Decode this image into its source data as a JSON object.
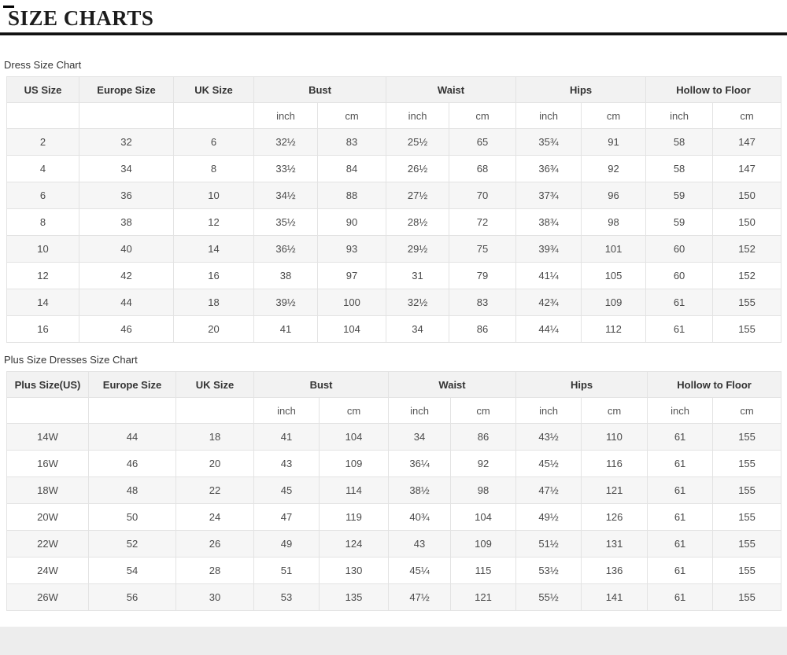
{
  "page": {
    "title": "SIZE CHARTS"
  },
  "sections": [
    {
      "label": "Dress Size Chart"
    },
    {
      "label": "Plus Size Dresses Size Chart"
    }
  ],
  "units": {
    "inch": "inch",
    "cm": "cm"
  },
  "table1": {
    "group_headers": [
      "US Size",
      "Europe Size",
      "UK Size",
      "Bust",
      "Waist",
      "Hips",
      "Hollow to Floor"
    ],
    "rows": [
      [
        "2",
        "32",
        "6",
        "32½",
        "83",
        "25½",
        "65",
        "35¾",
        "91",
        "58",
        "147"
      ],
      [
        "4",
        "34",
        "8",
        "33½",
        "84",
        "26½",
        "68",
        "36¾",
        "92",
        "58",
        "147"
      ],
      [
        "6",
        "36",
        "10",
        "34½",
        "88",
        "27½",
        "70",
        "37¾",
        "96",
        "59",
        "150"
      ],
      [
        "8",
        "38",
        "12",
        "35½",
        "90",
        "28½",
        "72",
        "38¾",
        "98",
        "59",
        "150"
      ],
      [
        "10",
        "40",
        "14",
        "36½",
        "93",
        "29½",
        "75",
        "39¾",
        "101",
        "60",
        "152"
      ],
      [
        "12",
        "42",
        "16",
        "38",
        "97",
        "31",
        "79",
        "41¼",
        "105",
        "60",
        "152"
      ],
      [
        "14",
        "44",
        "18",
        "39½",
        "100",
        "32½",
        "83",
        "42¾",
        "109",
        "61",
        "155"
      ],
      [
        "16",
        "46",
        "20",
        "41",
        "104",
        "34",
        "86",
        "44¼",
        "112",
        "61",
        "155"
      ]
    ]
  },
  "table2": {
    "group_headers": [
      "Plus Size(US)",
      "Europe Size",
      "UK Size",
      "Bust",
      "Waist",
      "Hips",
      "Hollow to Floor"
    ],
    "rows": [
      [
        "14W",
        "44",
        "18",
        "41",
        "104",
        "34",
        "86",
        "43½",
        "110",
        "61",
        "155"
      ],
      [
        "16W",
        "46",
        "20",
        "43",
        "109",
        "36¼",
        "92",
        "45½",
        "116",
        "61",
        "155"
      ],
      [
        "18W",
        "48",
        "22",
        "45",
        "114",
        "38½",
        "98",
        "47½",
        "121",
        "61",
        "155"
      ],
      [
        "20W",
        "50",
        "24",
        "47",
        "119",
        "40¾",
        "104",
        "49½",
        "126",
        "61",
        "155"
      ],
      [
        "22W",
        "52",
        "26",
        "49",
        "124",
        "43",
        "109",
        "51½",
        "131",
        "61",
        "155"
      ],
      [
        "24W",
        "54",
        "28",
        "51",
        "130",
        "45¼",
        "115",
        "53½",
        "136",
        "61",
        "155"
      ],
      [
        "26W",
        "56",
        "30",
        "53",
        "135",
        "47½",
        "121",
        "55½",
        "141",
        "61",
        "155"
      ]
    ]
  },
  "colors": {
    "header_bg": "#f2f2f2",
    "row_alt_bg": "#f6f6f6",
    "border": "#e3e3e3",
    "text": "#4a4a4a",
    "title_rule": "#121212",
    "footer_strip": "#ededed"
  }
}
